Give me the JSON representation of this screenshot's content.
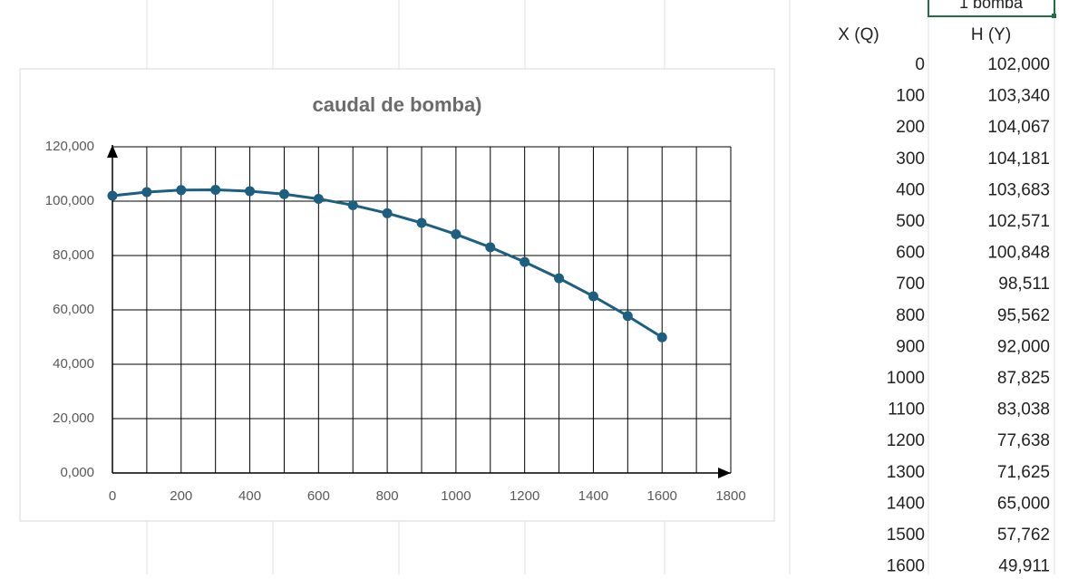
{
  "chart_data": {
    "type": "line",
    "title": "caudal de bomba)",
    "x": [
      0,
      100,
      200,
      300,
      400,
      500,
      600,
      700,
      800,
      900,
      1000,
      1100,
      1200,
      1300,
      1400,
      1500,
      1600
    ],
    "series": [
      {
        "color": "#1c5f80",
        "values": [
          102,
          103.34,
          104.067,
          104.181,
          103.683,
          102.571,
          100.848,
          98.511,
          95.562,
          92,
          87.825,
          83.038,
          77.638,
          71.625,
          65,
          57.762,
          49.911
        ]
      }
    ],
    "xlim": [
      0,
      1800
    ],
    "xticks": [
      0,
      200,
      400,
      600,
      800,
      1000,
      1200,
      1400,
      1600,
      1800
    ],
    "ylim": [
      0,
      120
    ],
    "yticks": [
      {
        "value": 0,
        "label": "0,000"
      },
      {
        "value": 20,
        "label": "20,000"
      },
      {
        "value": 40,
        "label": "40,000"
      },
      {
        "value": 60,
        "label": "60,000"
      },
      {
        "value": 80,
        "label": "80,000"
      },
      {
        "value": 100,
        "label": "100,000"
      },
      {
        "value": 120,
        "label": "120,000"
      }
    ],
    "grid": true
  },
  "table": {
    "top_cell": "1 bomba",
    "header": [
      "X (Q)",
      "H (Y)"
    ],
    "rows": [
      [
        "0",
        "102,000"
      ],
      [
        "100",
        "103,340"
      ],
      [
        "200",
        "104,067"
      ],
      [
        "300",
        "104,181"
      ],
      [
        "400",
        "103,683"
      ],
      [
        "500",
        "102,571"
      ],
      [
        "600",
        "100,848"
      ],
      [
        "700",
        "98,511"
      ],
      [
        "800",
        "95,562"
      ],
      [
        "900",
        "92,000"
      ],
      [
        "1000",
        "87,825"
      ],
      [
        "1100",
        "83,038"
      ],
      [
        "1200",
        "77,638"
      ],
      [
        "1300",
        "71,625"
      ],
      [
        "1400",
        "65,000"
      ],
      [
        "1500",
        "57,762"
      ],
      [
        "1600",
        "49,911"
      ]
    ]
  }
}
